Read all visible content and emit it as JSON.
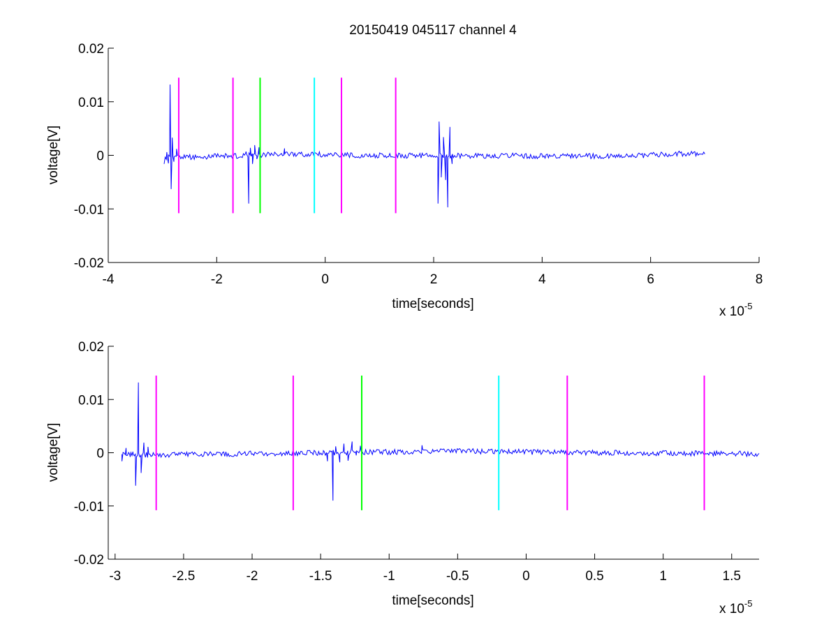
{
  "figure_title": "20150419 045117 channel 4",
  "chart_data": [
    {
      "type": "line",
      "title": "20150419 045117 channel 4",
      "xlabel": "time[seconds]",
      "ylabel": "voltage[V]",
      "x_exponent_label": "x 10",
      "x_exponent": "-5",
      "xlim": [
        -4,
        8
      ],
      "ylim": [
        -0.02,
        0.02
      ],
      "xticks": [
        -4,
        -2,
        0,
        2,
        4,
        6,
        8
      ],
      "xtick_labels": [
        "-4",
        "-2",
        "0",
        "2",
        "4",
        "6",
        "8"
      ],
      "yticks": [
        -0.02,
        -0.01,
        0,
        0.01,
        0.02
      ],
      "ytick_labels": [
        "-0.02",
        "-0.01",
        "0",
        "0.01",
        "0.02"
      ],
      "grid": false,
      "series": [
        {
          "color": "#0000ff",
          "x_range": [
            -2.95,
            7.0
          ],
          "noise_amplitude": 0.0005,
          "baseline": [
            {
              "x": -2.7,
              "y": -0.0004
            },
            {
              "x": -0.5,
              "y": 0.0003
            },
            {
              "x": 0.5,
              "y": 0.0
            },
            {
              "x": 3.5,
              "y": -0.0001
            },
            {
              "x": 5.5,
              "y": -0.0002
            },
            {
              "x": 6.5,
              "y": 0.0003
            },
            {
              "x": 7.0,
              "y": 0.0003
            }
          ],
          "spikes": [
            {
              "x": -2.97,
              "y": -0.0016
            },
            {
              "x": -2.92,
              "y": 0.0006
            },
            {
              "x": -2.89,
              "y": -0.0015
            },
            {
              "x": -2.86,
              "y": 0.0132
            },
            {
              "x": -2.84,
              "y": -0.0063
            },
            {
              "x": -2.82,
              "y": 0.0033
            },
            {
              "x": -2.79,
              "y": -0.0012
            },
            {
              "x": -2.74,
              "y": 0.0012
            },
            {
              "x": -1.46,
              "y": 0.0007
            },
            {
              "x": -1.41,
              "y": -0.009
            },
            {
              "x": -1.38,
              "y": 0.0014
            },
            {
              "x": -1.34,
              "y": -0.0016
            },
            {
              "x": -1.3,
              "y": 0.0019
            },
            {
              "x": -1.26,
              "y": -0.0007
            },
            {
              "x": -1.22,
              "y": 0.0015
            },
            {
              "x": -0.75,
              "y": 0.0013
            },
            {
              "x": 2.08,
              "y": -0.009
            },
            {
              "x": 2.1,
              "y": 0.0063
            },
            {
              "x": 2.14,
              "y": -0.0041
            },
            {
              "x": 2.18,
              "y": 0.0034
            },
            {
              "x": 2.22,
              "y": -0.0046
            },
            {
              "x": 2.26,
              "y": -0.0097
            },
            {
              "x": 2.3,
              "y": 0.0053
            },
            {
              "x": 2.34,
              "y": -0.0016
            }
          ]
        }
      ],
      "markers": [
        {
          "x": -2.7,
          "color": "#ff00ff"
        },
        {
          "x": -1.7,
          "color": "#ff00ff"
        },
        {
          "x": -1.2,
          "color": "#00ff00"
        },
        {
          "x": -0.2,
          "color": "#00ffff"
        },
        {
          "x": 0.3,
          "color": "#ff00ff"
        },
        {
          "x": 1.3,
          "color": "#ff00ff"
        }
      ],
      "marker_yrange": [
        -0.0108,
        0.0145
      ]
    },
    {
      "type": "line",
      "title": "",
      "xlabel": "time[seconds]",
      "ylabel": "voltage[V]",
      "x_exponent_label": "x 10",
      "x_exponent": "-5",
      "xlim": [
        -3.05,
        1.7
      ],
      "ylim": [
        -0.02,
        0.02
      ],
      "xticks": [
        -3,
        -2.5,
        -2,
        -1.5,
        -1,
        -0.5,
        0,
        0.5,
        1,
        1.5
      ],
      "xtick_labels": [
        "-3",
        "-2.5",
        "-2",
        "-1.5",
        "-1",
        "-0.5",
        "0",
        "0.5",
        "1",
        "1.5"
      ],
      "yticks": [
        -0.02,
        -0.01,
        0,
        0.01,
        0.02
      ],
      "ytick_labels": [
        "-0.02",
        "-0.01",
        "0",
        "0.01",
        "0.02"
      ],
      "grid": false,
      "series": [
        {
          "color": "#0000ff",
          "x_range": [
            -2.95,
            1.7
          ],
          "noise_amplitude": 0.0005,
          "baseline": [
            {
              "x": -2.7,
              "y": -0.0004
            },
            {
              "x": -0.5,
              "y": 0.0003
            },
            {
              "x": 0.5,
              "y": 0.0
            },
            {
              "x": 1.7,
              "y": -0.0002
            }
          ],
          "spikes": [
            {
              "x": -2.95,
              "y": -0.0016
            },
            {
              "x": -2.92,
              "y": 0.0009
            },
            {
              "x": -2.89,
              "y": -0.0008
            },
            {
              "x": -2.87,
              "y": 0.0002
            },
            {
              "x": -2.85,
              "y": -0.0062
            },
            {
              "x": -2.83,
              "y": 0.0132
            },
            {
              "x": -2.81,
              "y": -0.0038
            },
            {
              "x": -2.79,
              "y": 0.0019
            },
            {
              "x": -2.76,
              "y": 0.0011
            },
            {
              "x": -2.73,
              "y": -0.0005
            },
            {
              "x": -1.48,
              "y": 0.0004
            },
            {
              "x": -1.45,
              "y": -0.0016
            },
            {
              "x": -1.41,
              "y": -0.009
            },
            {
              "x": -1.39,
              "y": 0.0012
            },
            {
              "x": -1.36,
              "y": -0.0018
            },
            {
              "x": -1.33,
              "y": 0.0017
            },
            {
              "x": -1.3,
              "y": -0.0015
            },
            {
              "x": -1.27,
              "y": 0.0021
            },
            {
              "x": -1.24,
              "y": -0.0005
            },
            {
              "x": -1.21,
              "y": 0.0013
            },
            {
              "x": -0.76,
              "y": 0.0014
            }
          ]
        }
      ],
      "markers": [
        {
          "x": -2.7,
          "color": "#ff00ff"
        },
        {
          "x": -1.7,
          "color": "#ff00ff"
        },
        {
          "x": -1.2,
          "color": "#00ff00"
        },
        {
          "x": -0.2,
          "color": "#00ffff"
        },
        {
          "x": 0.3,
          "color": "#ff00ff"
        },
        {
          "x": 1.3,
          "color": "#ff00ff"
        }
      ],
      "marker_yrange": [
        -0.0108,
        0.0145
      ]
    }
  ]
}
